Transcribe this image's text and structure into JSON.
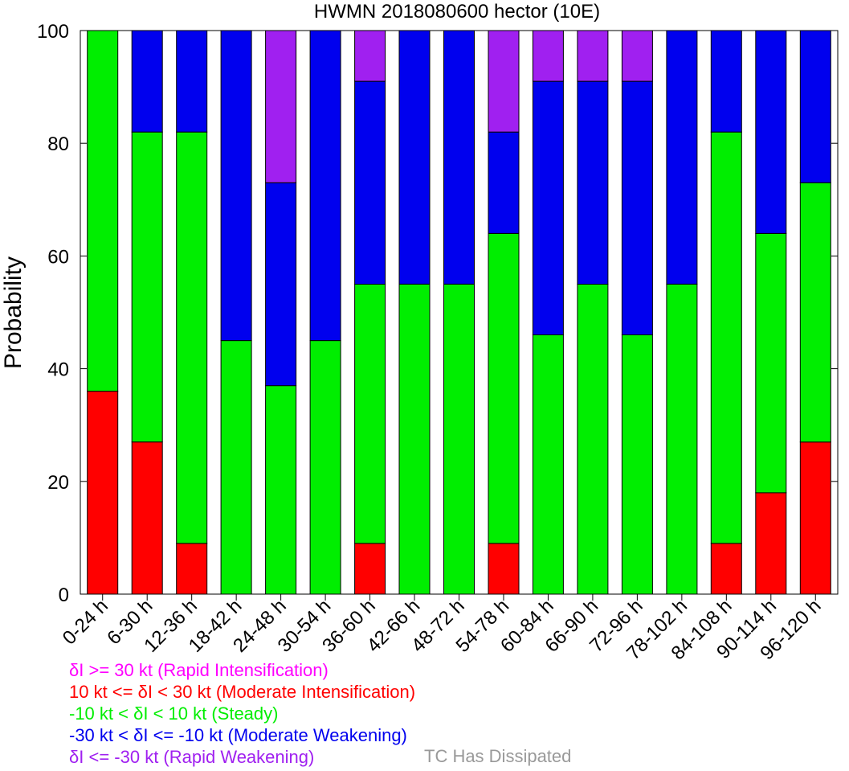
{
  "chart_data": {
    "type": "bar",
    "stacked": true,
    "title": "HWMN 2018080600 hector (10E)",
    "xlabel": "",
    "ylabel": "Probability",
    "ylim": [
      0,
      100
    ],
    "yticks": [
      0,
      20,
      40,
      60,
      80,
      100
    ],
    "categories": [
      "0-24 h",
      "6-30 h",
      "12-36 h",
      "18-42 h",
      "24-48 h",
      "30-54 h",
      "36-60 h",
      "42-66 h",
      "48-72 h",
      "54-78 h",
      "60-84 h",
      "66-90 h",
      "72-96 h",
      "78-102 h",
      "84-108 h",
      "90-114 h",
      "96-120 h"
    ],
    "series": [
      {
        "name": "10 kt <= δI < 30 kt (Moderate Intensification)",
        "color": "#ff0000",
        "values": [
          36,
          27,
          9,
          0,
          0,
          0,
          9,
          0,
          0,
          9,
          0,
          0,
          0,
          0,
          9,
          18,
          27
        ]
      },
      {
        "name": "-10 kt < δI < 10 kt (Steady)",
        "color": "#00ee00",
        "values": [
          64,
          55,
          73,
          45,
          37,
          45,
          46,
          55,
          55,
          55,
          46,
          55,
          46,
          55,
          73,
          46,
          46
        ]
      },
      {
        "name": "-30 kt < δI <= -10 kt (Moderate Weakening)",
        "color": "#0000ee",
        "values": [
          0,
          18,
          18,
          55,
          36,
          55,
          36,
          45,
          45,
          18,
          45,
          36,
          45,
          45,
          18,
          36,
          27
        ]
      },
      {
        "name": "δI <= -30 kt (Rapid Weakening)",
        "color": "#a020f0",
        "values": [
          0,
          0,
          0,
          0,
          27,
          0,
          9,
          0,
          0,
          18,
          9,
          9,
          9,
          0,
          0,
          0,
          0
        ]
      },
      {
        "name": "δI >= 30 kt (Rapid Intensification)",
        "color": "#ff00ff",
        "values": [
          0,
          0,
          0,
          0,
          0,
          0,
          0,
          0,
          0,
          0,
          0,
          0,
          0,
          0,
          0,
          0,
          0
        ]
      }
    ],
    "grid": false
  },
  "legend": {
    "items": [
      {
        "text": "δI >= 30 kt (Rapid Intensification)",
        "color": "#ff00ff"
      },
      {
        "text": "10 kt <= δI < 30 kt (Moderate Intensification)",
        "color": "#ff0000"
      },
      {
        "text": "-10 kt < δI < 10 kt (Steady)",
        "color": "#00ee00"
      },
      {
        "text": "-30 kt < δI <= -10 kt (Moderate Weakening)",
        "color": "#0000ee"
      },
      {
        "text": "δI <= -30 kt (Rapid Weakening)",
        "color": "#a020f0"
      }
    ],
    "dissipated_text": "TC Has Dissipated",
    "dissipated_color": "#999999"
  }
}
